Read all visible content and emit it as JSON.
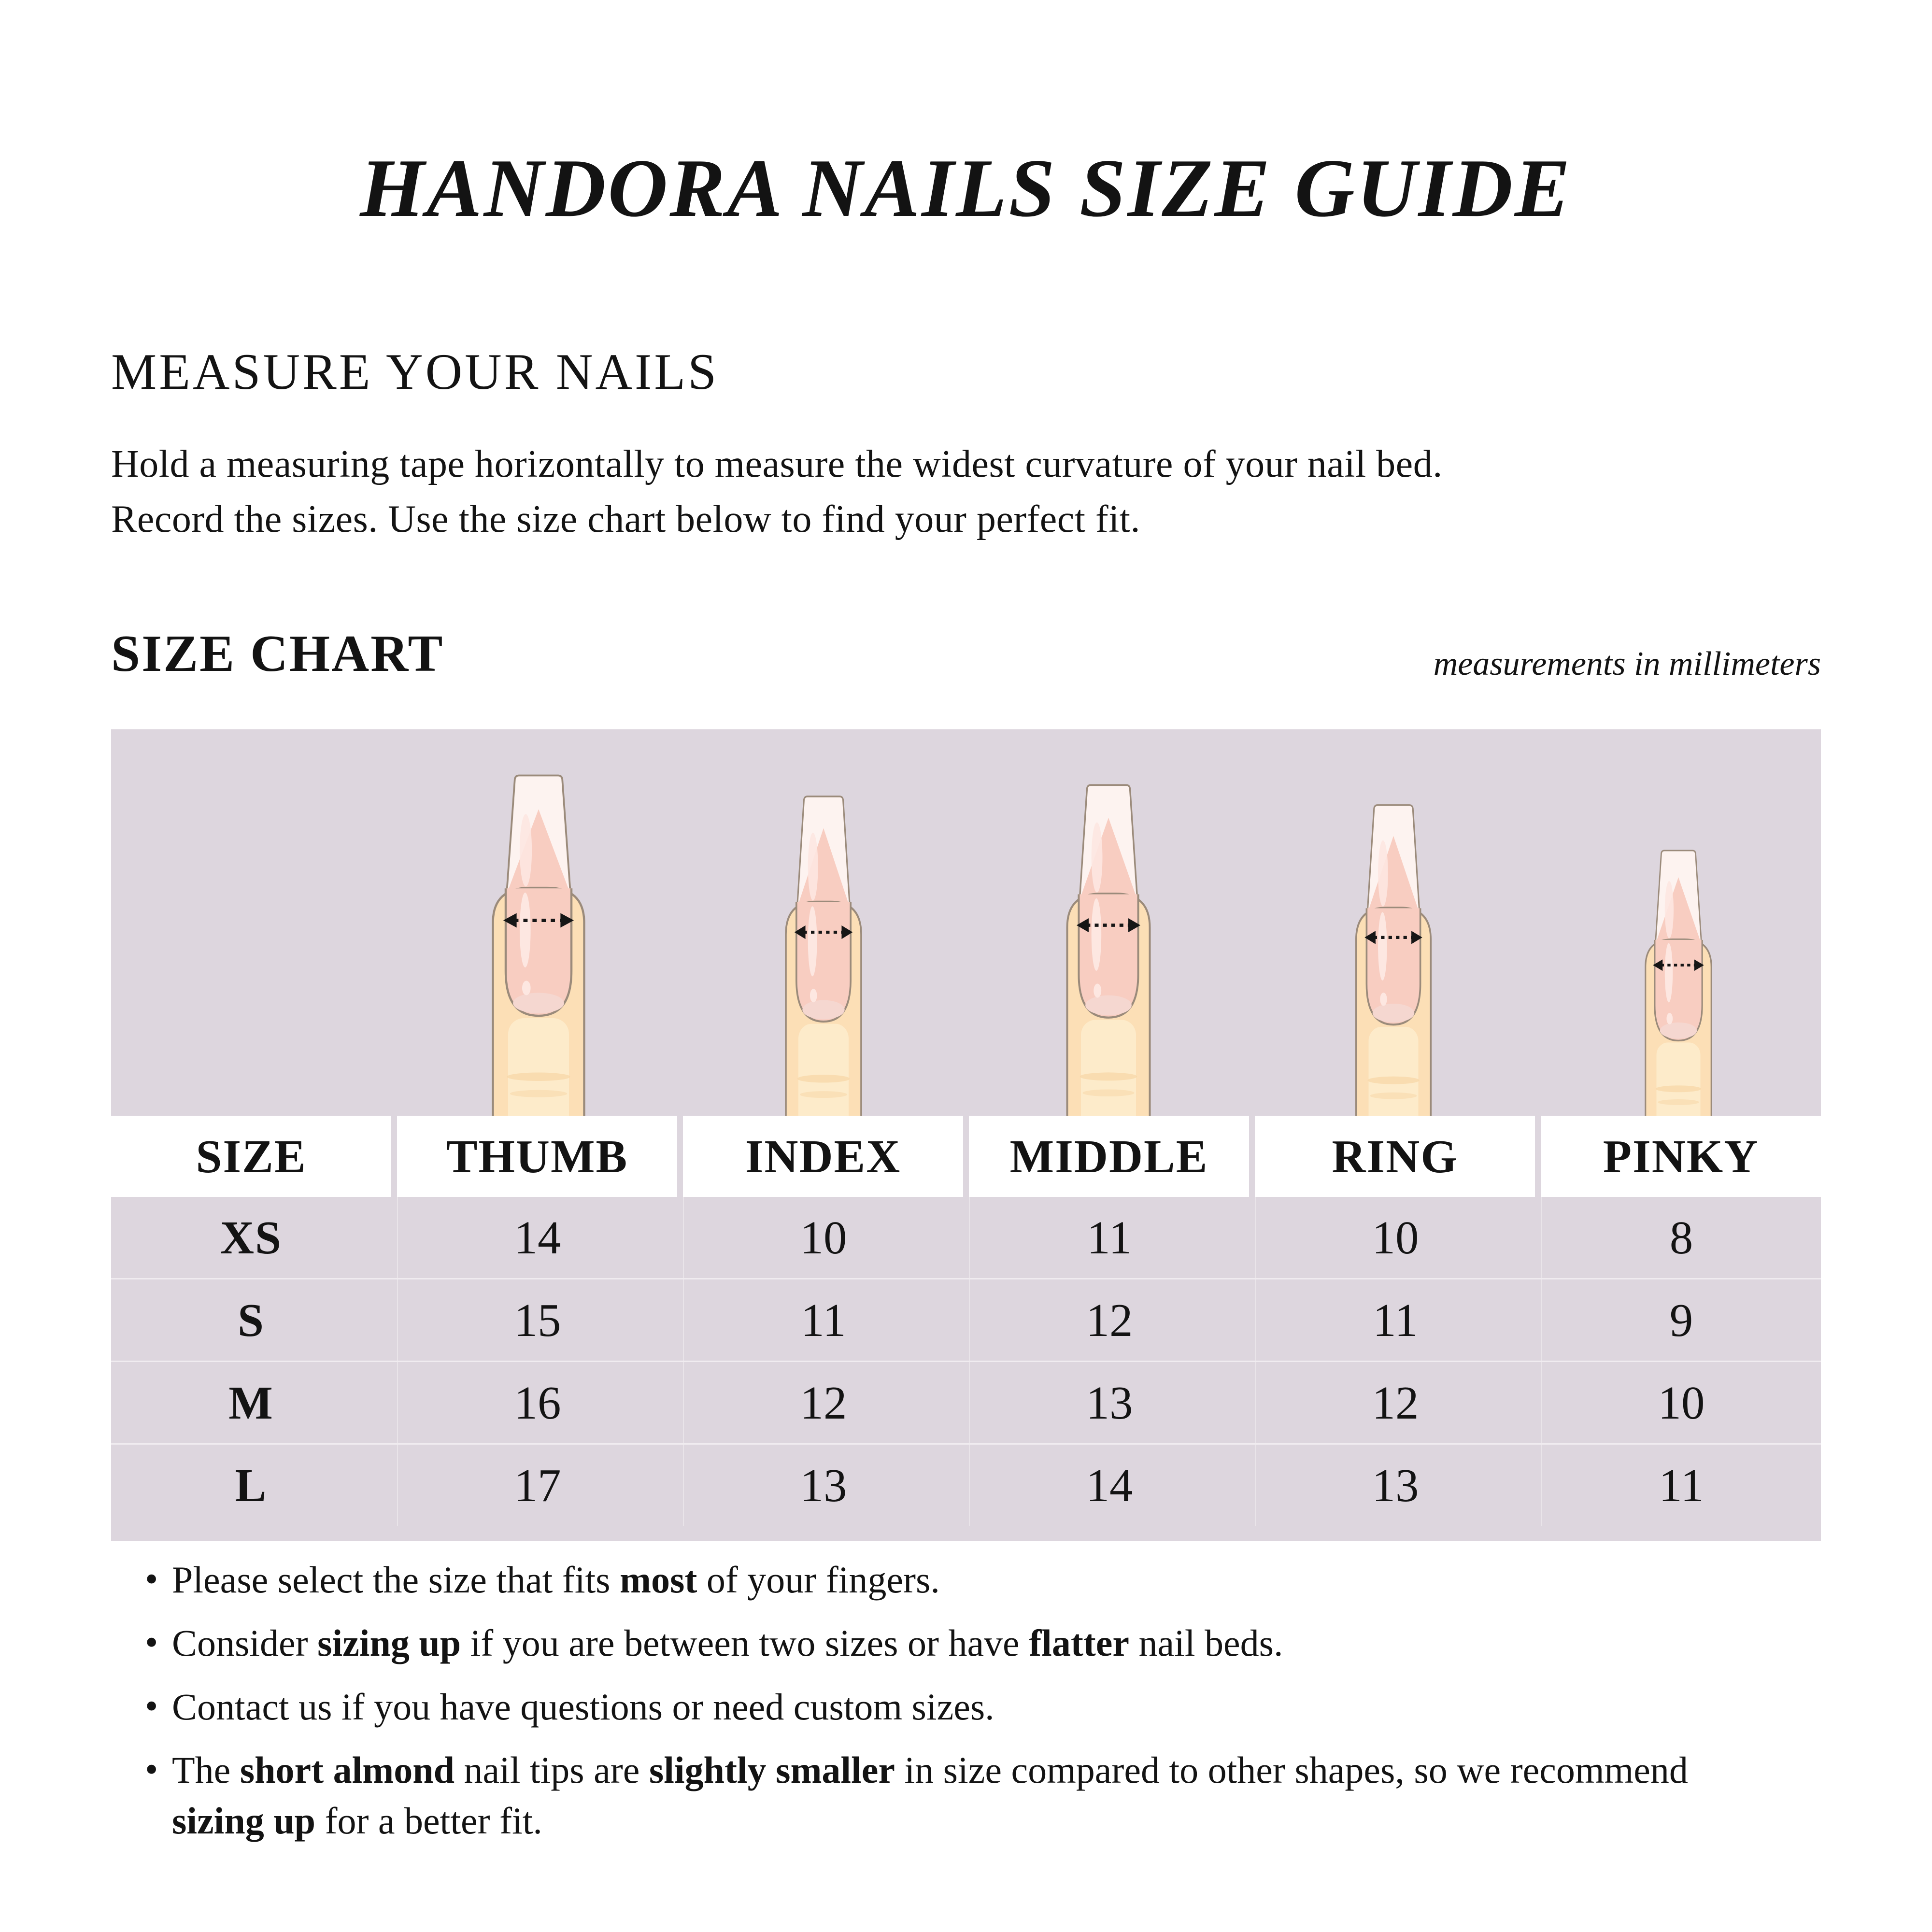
{
  "title": "HANDORA NAILS SIZE GUIDE",
  "measure": {
    "heading": "MEASURE YOUR NAILS",
    "line1": "Hold a measuring tape horizontally to measure the widest curvature of your nail bed.",
    "line2": "Record the sizes. Use the size chart below to find your perfect fit."
  },
  "size_chart": {
    "heading": "SIZE CHART",
    "note": "measurements in millimeters",
    "columns": [
      "SIZE",
      "THUMB",
      "INDEX",
      "MIDDLE",
      "RING",
      "PINKY"
    ],
    "fingers": [
      "thumb",
      "index",
      "middle",
      "ring",
      "pinky"
    ],
    "rows": [
      {
        "size": "XS",
        "values": [
          "14",
          "10",
          "11",
          "10",
          "8"
        ]
      },
      {
        "size": "S",
        "values": [
          "15",
          "11",
          "12",
          "11",
          "9"
        ]
      },
      {
        "size": "M",
        "values": [
          "16",
          "12",
          "13",
          "12",
          "10"
        ]
      },
      {
        "size": "L",
        "values": [
          "17",
          "13",
          "14",
          "13",
          "11"
        ]
      }
    ]
  },
  "notes": [
    [
      {
        "t": "Please select the size that fits "
      },
      {
        "t": "most",
        "b": 1
      },
      {
        "t": " of your fingers."
      }
    ],
    [
      {
        "t": "Consider "
      },
      {
        "t": "sizing up",
        "b": 1
      },
      {
        "t": " if you are between two sizes or have "
      },
      {
        "t": "flatter",
        "b": 1
      },
      {
        "t": " nail beds."
      }
    ],
    [
      {
        "t": "Contact us if you have questions or need custom sizes."
      }
    ],
    [
      {
        "t": "The "
      },
      {
        "t": "short almond",
        "b": 1
      },
      {
        "t": " nail tips are "
      },
      {
        "t": "slightly smaller",
        "b": 1
      },
      {
        "t": " in size compared to other shapes, so we recommend"
      },
      {
        "br": 1
      },
      {
        "t": "sizing up",
        "b": 1
      },
      {
        "t": " for a better fit."
      }
    ]
  ],
  "colors": {
    "panel_bg": "#ddd6de",
    "header_cell_bg": "#ffffff",
    "text": "#131313",
    "skin": "#fcdfb6",
    "skin_shade": "#fdebcb",
    "skin_outline": "#9b8b7b",
    "nail_bed": "#f8cdc1",
    "nail_bed_light": "#fde7e1",
    "lunula": "#f5d7d0",
    "nail_tip": "#fdf3f0",
    "crease": "#f7d7a7",
    "arrow": "#161616"
  }
}
